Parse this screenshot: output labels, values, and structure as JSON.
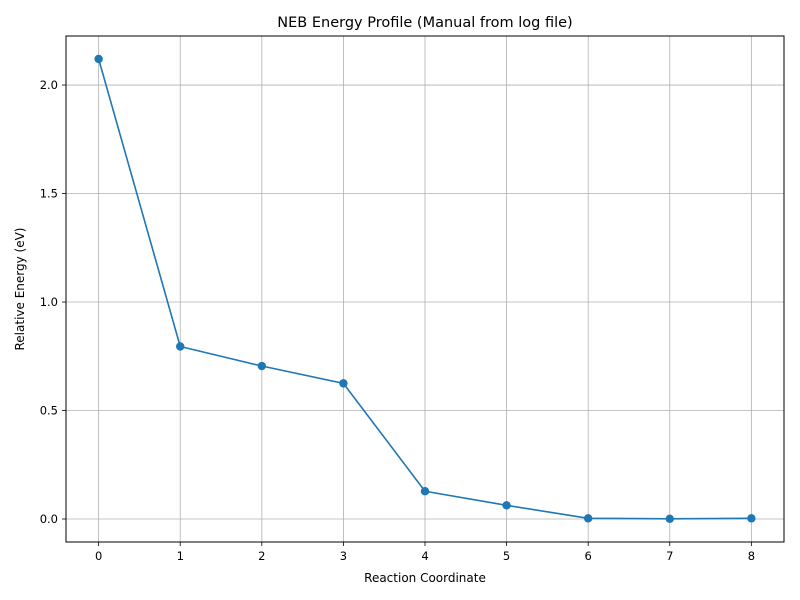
{
  "chart_data": {
    "type": "line",
    "title": "NEB Energy Profile (Manual from log file)",
    "xlabel": "Reaction Coordinate",
    "ylabel": "Relative Energy (eV)",
    "x": [
      0,
      1,
      2,
      3,
      4,
      5,
      6,
      7,
      8
    ],
    "xticks": [
      0,
      1,
      2,
      3,
      4,
      5,
      6,
      7,
      8
    ],
    "xtick_labels": [
      "0",
      "1",
      "2",
      "3",
      "4",
      "5",
      "6",
      "7",
      "8"
    ],
    "yticks": [
      0.0,
      0.5,
      1.0,
      1.5,
      2.0
    ],
    "ytick_labels": [
      "0.0",
      "0.5",
      "1.0",
      "1.5",
      "2.0"
    ],
    "xlim": [
      -0.4,
      8.4
    ],
    "ylim": [
      -0.106,
      2.226
    ],
    "grid": true,
    "marker": "circle",
    "series": [
      {
        "values": [
          2.12,
          0.795,
          0.705,
          0.625,
          0.128,
          0.063,
          0.003,
          0.001,
          0.003
        ],
        "color": "#1f77b4"
      }
    ]
  }
}
